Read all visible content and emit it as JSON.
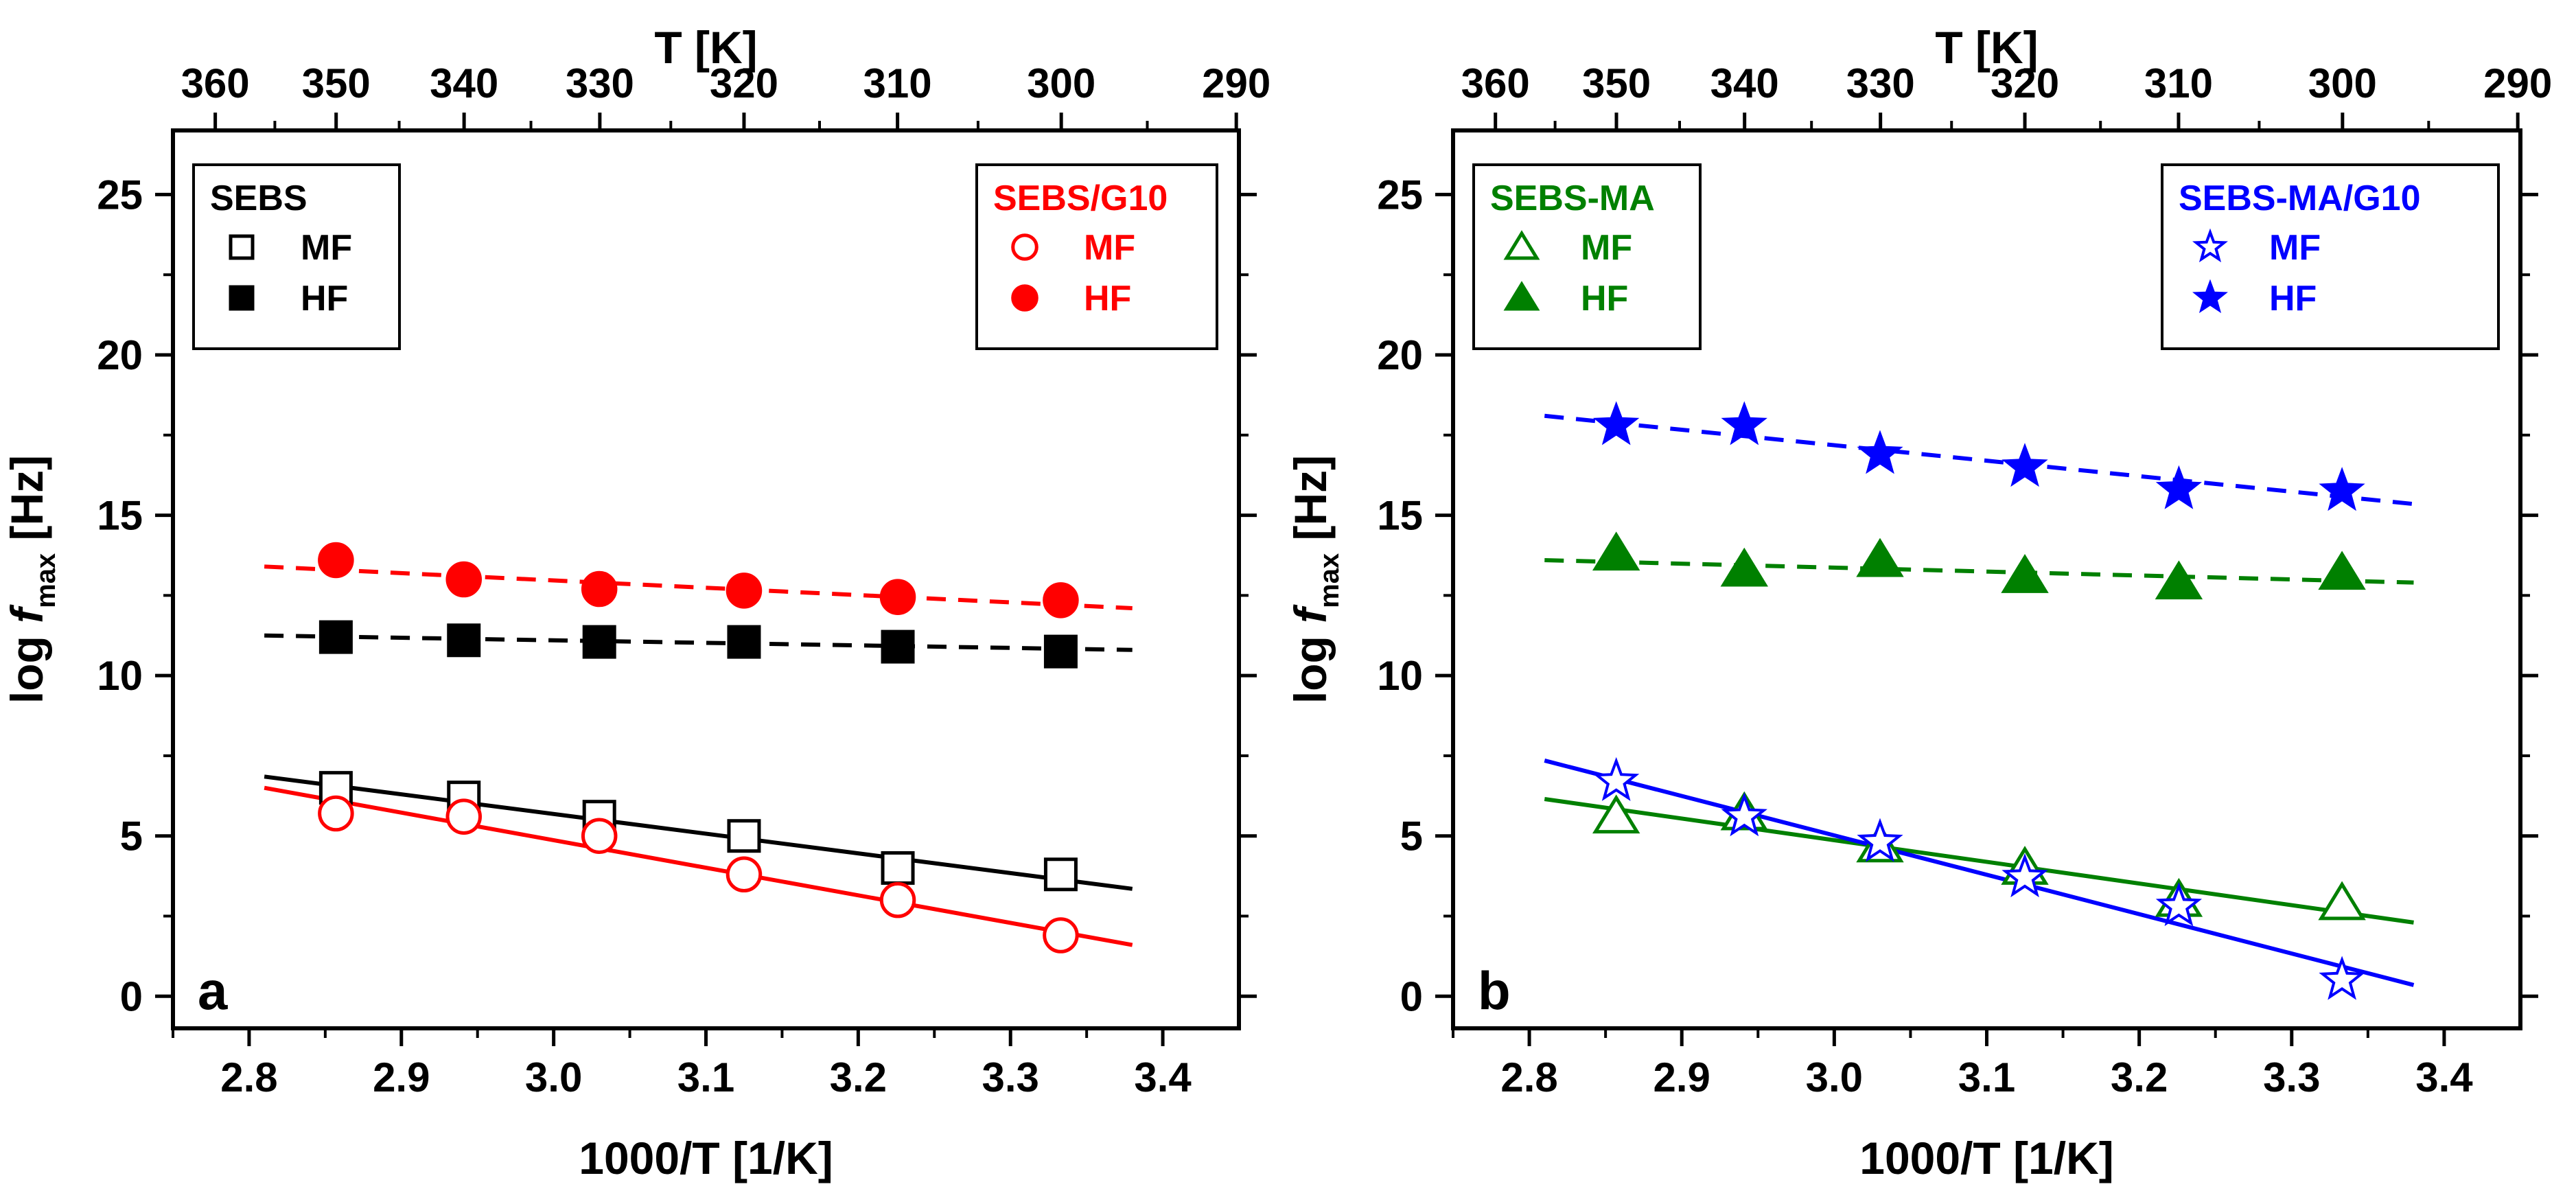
{
  "figure": {
    "panels": [
      "a",
      "b"
    ]
  },
  "chart_data": [
    {
      "type": "scatter",
      "panel_label": "a",
      "xlabel": "1000/T [1/K]",
      "ylabel_prefix": "log ",
      "ylabel_var": "f",
      "ylabel_sub": "max",
      "ylabel_suffix": " [Hz]",
      "top_xlabel": "T [K]",
      "xlim": [
        2.75,
        3.45
      ],
      "ylim": [
        -1,
        27
      ],
      "xticks": [
        2.8,
        2.9,
        3.0,
        3.1,
        3.2,
        3.3,
        3.4
      ],
      "xtick_labels": [
        "2.8",
        "2.9",
        "3.0",
        "3.1",
        "3.2",
        "3.3",
        "3.4"
      ],
      "yticks": [
        0,
        5,
        10,
        15,
        20,
        25
      ],
      "ytick_labels": [
        "0",
        "5",
        "10",
        "15",
        "20",
        "25"
      ],
      "top_ticks": [
        360,
        350,
        340,
        330,
        320,
        310,
        300,
        290
      ],
      "top_tick_labels": [
        "360",
        "350",
        "340",
        "330",
        "320",
        "310",
        "300",
        "290"
      ],
      "legends": [
        {
          "position": "top-left",
          "title": "SEBS",
          "color": "#000000",
          "entries": [
            {
              "label": "MF",
              "marker": "square",
              "filled": false
            },
            {
              "label": "HF",
              "marker": "square",
              "filled": true
            }
          ]
        },
        {
          "position": "top-right",
          "title": "SEBS/G10",
          "color": "#ff0000",
          "entries": [
            {
              "label": "MF",
              "marker": "circle",
              "filled": false
            },
            {
              "label": "HF",
              "marker": "circle",
              "filled": true
            }
          ]
        }
      ],
      "series": [
        {
          "name": "SEBS MF",
          "color": "#000000",
          "marker": "square",
          "filled": false,
          "x": [
            2.857,
            2.941,
            3.03,
            3.125,
            3.226,
            3.333
          ],
          "y": [
            6.5,
            6.2,
            5.6,
            5.0,
            4.0,
            3.8
          ],
          "fit": {
            "style": "solid",
            "x": [
              2.81,
              3.38
            ],
            "y": [
              6.85,
              3.35
            ]
          }
        },
        {
          "name": "SEBS HF",
          "color": "#000000",
          "marker": "square",
          "filled": true,
          "x": [
            2.857,
            2.941,
            3.03,
            3.125,
            3.226,
            3.333
          ],
          "y": [
            11.2,
            11.1,
            11.05,
            11.05,
            10.9,
            10.75
          ],
          "fit": {
            "style": "dashed",
            "x": [
              2.81,
              3.38
            ],
            "y": [
              11.25,
              10.8
            ]
          }
        },
        {
          "name": "SEBS/G10 MF",
          "color": "#ff0000",
          "marker": "circle",
          "filled": false,
          "x": [
            2.857,
            2.941,
            3.03,
            3.125,
            3.226,
            3.333
          ],
          "y": [
            5.7,
            5.6,
            5.0,
            3.8,
            3.0,
            1.9
          ],
          "fit": {
            "style": "solid",
            "x": [
              2.81,
              3.38
            ],
            "y": [
              6.5,
              1.6
            ]
          }
        },
        {
          "name": "SEBS/G10 HF",
          "color": "#ff0000",
          "marker": "circle",
          "filled": true,
          "x": [
            2.857,
            2.941,
            3.03,
            3.125,
            3.226,
            3.333
          ],
          "y": [
            13.6,
            13.0,
            12.7,
            12.65,
            12.45,
            12.35
          ],
          "fit": {
            "style": "dashed",
            "x": [
              2.81,
              3.38
            ],
            "y": [
              13.4,
              12.1
            ]
          }
        }
      ]
    },
    {
      "type": "scatter",
      "panel_label": "b",
      "xlabel": "1000/T [1/K]",
      "ylabel_prefix": "log ",
      "ylabel_var": "f",
      "ylabel_sub": "max",
      "ylabel_suffix": " [Hz]",
      "top_xlabel": "T [K]",
      "xlim": [
        2.75,
        3.45
      ],
      "ylim": [
        -1,
        27
      ],
      "xticks": [
        2.8,
        2.9,
        3.0,
        3.1,
        3.2,
        3.3,
        3.4
      ],
      "xtick_labels": [
        "2.8",
        "2.9",
        "3.0",
        "3.1",
        "3.2",
        "3.3",
        "3.4"
      ],
      "yticks": [
        0,
        5,
        10,
        15,
        20,
        25
      ],
      "ytick_labels": [
        "0",
        "5",
        "10",
        "15",
        "20",
        "25"
      ],
      "top_ticks": [
        360,
        350,
        340,
        330,
        320,
        310,
        300,
        290
      ],
      "top_tick_labels": [
        "360",
        "350",
        "340",
        "330",
        "320",
        "310",
        "300",
        "290"
      ],
      "legends": [
        {
          "position": "top-left",
          "title": "SEBS-MA",
          "color": "#008000",
          "entries": [
            {
              "label": "MF",
              "marker": "triangle",
              "filled": false
            },
            {
              "label": "HF",
              "marker": "triangle",
              "filled": true
            }
          ]
        },
        {
          "position": "top-right",
          "title": "SEBS-MA/G10",
          "color": "#0000ff",
          "entries": [
            {
              "label": "MF",
              "marker": "star",
              "filled": false
            },
            {
              "label": "HF",
              "marker": "star",
              "filled": true
            }
          ]
        }
      ],
      "series": [
        {
          "name": "SEBS-MA MF",
          "color": "#008000",
          "marker": "triangle",
          "filled": false,
          "x": [
            2.857,
            2.941,
            3.03,
            3.125,
            3.226,
            3.333
          ],
          "y": [
            5.6,
            5.7,
            4.7,
            4.0,
            3.0,
            2.9
          ],
          "fit": {
            "style": "solid",
            "x": [
              2.81,
              3.38
            ],
            "y": [
              6.15,
              2.3
            ]
          }
        },
        {
          "name": "SEBS-MA HF",
          "color": "#008000",
          "marker": "triangle",
          "filled": true,
          "x": [
            2.857,
            2.941,
            3.03,
            3.125,
            3.226,
            3.333
          ],
          "y": [
            13.8,
            13.3,
            13.6,
            13.1,
            12.9,
            13.2
          ],
          "fit": {
            "style": "dashed",
            "x": [
              2.81,
              3.38
            ],
            "y": [
              13.6,
              12.9
            ]
          }
        },
        {
          "name": "SEBS-MA/G10 MF",
          "color": "#0000ff",
          "marker": "star",
          "filled": false,
          "x": [
            2.857,
            2.941,
            3.03,
            3.125,
            3.226,
            3.333
          ],
          "y": [
            6.7,
            5.6,
            4.8,
            3.7,
            2.8,
            0.5
          ],
          "fit": {
            "style": "solid",
            "x": [
              2.81,
              3.38
            ],
            "y": [
              7.35,
              0.35
            ]
          }
        },
        {
          "name": "SEBS-MA/G10 HF",
          "color": "#0000ff",
          "marker": "star",
          "filled": true,
          "x": [
            2.857,
            2.941,
            3.03,
            3.125,
            3.226,
            3.333
          ],
          "y": [
            17.8,
            17.8,
            16.9,
            16.5,
            15.8,
            15.75
          ],
          "fit": {
            "style": "dashed",
            "x": [
              2.81,
              3.38
            ],
            "y": [
              18.1,
              15.35
            ]
          }
        }
      ]
    }
  ]
}
